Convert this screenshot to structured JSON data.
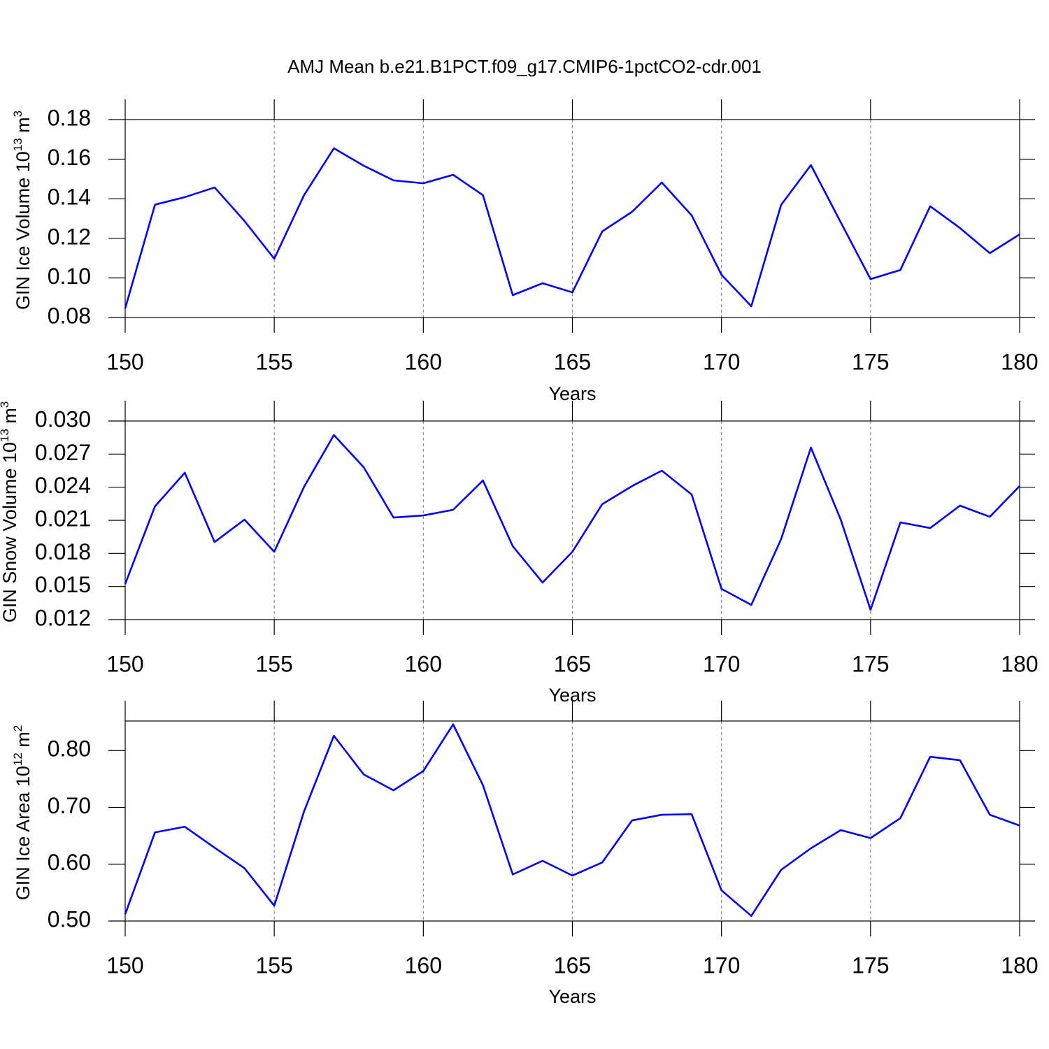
{
  "title": "AMJ Mean b.e21.B1PCT.f09_g17.CMIP6-1pctCO2-cdr.001",
  "chart_data": [
    {
      "type": "line",
      "xlabel": "Years",
      "ylabel": {
        "text": "GIN Ice Volume 10",
        "exp": "13",
        "unit": " m",
        "unit_exp": "3"
      },
      "x": [
        150,
        151,
        152,
        153,
        154,
        155,
        156,
        157,
        158,
        159,
        160,
        161,
        162,
        163,
        164,
        165,
        166,
        167,
        168,
        169,
        170,
        171,
        172,
        173,
        174,
        175,
        176,
        177,
        178,
        179,
        180
      ],
      "series": [
        {
          "name": "GIN Ice Volume",
          "color": "#0000ff",
          "values": [
            0.0846,
            0.137,
            0.1408,
            0.1457,
            0.1288,
            0.1097,
            0.1418,
            0.1655,
            0.1567,
            0.1493,
            0.1478,
            0.1521,
            0.1418,
            0.0913,
            0.0973,
            0.0927,
            0.1235,
            0.1334,
            0.1482,
            0.1316,
            0.1016,
            0.0857,
            0.1369,
            0.157,
            0.1281,
            0.0994,
            0.104,
            0.1362,
            0.1252,
            0.1125,
            0.122
          ]
        }
      ],
      "xlim": [
        150,
        180
      ],
      "xticks": [
        150,
        155,
        160,
        165,
        170,
        175,
        180
      ],
      "ylim": [
        0.08,
        0.18
      ],
      "yticks": [
        {
          "value": 0.08,
          "label": "0.08"
        },
        {
          "value": 0.1,
          "label": "0.10"
        },
        {
          "value": 0.12,
          "label": "0.12"
        },
        {
          "value": 0.14,
          "label": "0.14"
        },
        {
          "value": 0.16,
          "label": "0.16"
        },
        {
          "value": 0.18,
          "label": "0.18"
        }
      ],
      "xgrid": true
    },
    {
      "type": "line",
      "xlabel": "Years",
      "ylabel": {
        "text": "GIN Snow Volume 10",
        "exp": "13",
        "unit": " m",
        "unit_exp": "3"
      },
      "x": [
        150,
        151,
        152,
        153,
        154,
        155,
        156,
        157,
        158,
        159,
        160,
        161,
        162,
        163,
        164,
        165,
        166,
        167,
        168,
        169,
        170,
        171,
        172,
        173,
        174,
        175,
        176,
        177,
        178,
        179,
        180
      ],
      "series": [
        {
          "name": "GIN Snow Volume",
          "color": "#0000ff",
          "values": [
            0.01523,
            0.02227,
            0.02531,
            0.01903,
            0.02106,
            0.01815,
            0.02404,
            0.02873,
            0.02581,
            0.02125,
            0.02144,
            0.02195,
            0.02461,
            0.01865,
            0.01536,
            0.01815,
            0.02246,
            0.0241,
            0.0255,
            0.02334,
            0.01479,
            0.01333,
            0.01929,
            0.02759,
            0.02106,
            0.01289,
            0.02081,
            0.0203,
            0.02233,
            0.02132,
            0.0241
          ]
        }
      ],
      "xlim": [
        150,
        180
      ],
      "xticks": [
        150,
        155,
        160,
        165,
        170,
        175,
        180
      ],
      "ylim": [
        0.012,
        0.03
      ],
      "yticks": [
        {
          "value": 0.012,
          "label": "0.012"
        },
        {
          "value": 0.015,
          "label": "0.015"
        },
        {
          "value": 0.018,
          "label": "0.018"
        },
        {
          "value": 0.021,
          "label": "0.021"
        },
        {
          "value": 0.024,
          "label": "0.024"
        },
        {
          "value": 0.027,
          "label": "0.027"
        },
        {
          "value": 0.03,
          "label": "0.030"
        }
      ],
      "xgrid": true
    },
    {
      "type": "line",
      "xlabel": "Years",
      "ylabel": {
        "text": "GIN Ice Area 10",
        "exp": "12",
        "unit": " m",
        "unit_exp": "2"
      },
      "x": [
        150,
        151,
        152,
        153,
        154,
        155,
        156,
        157,
        158,
        159,
        160,
        161,
        162,
        163,
        164,
        165,
        166,
        167,
        168,
        169,
        170,
        171,
        172,
        173,
        174,
        175,
        176,
        177,
        178,
        179,
        180
      ],
      "series": [
        {
          "name": "GIN Ice Area",
          "color": "#0000ff",
          "values": [
            0.512,
            0.656,
            0.666,
            0.629,
            0.593,
            0.527,
            0.693,
            0.826,
            0.758,
            0.73,
            0.764,
            0.846,
            0.739,
            0.582,
            0.606,
            0.58,
            0.603,
            0.677,
            0.687,
            0.688,
            0.554,
            0.509,
            0.59,
            0.628,
            0.66,
            0.646,
            0.681,
            0.789,
            0.783,
            0.687,
            0.668
          ]
        }
      ],
      "xlim": [
        150,
        180
      ],
      "xticks": [
        150,
        155,
        160,
        165,
        170,
        175,
        180
      ],
      "ylim": [
        0.5,
        0.852
      ],
      "yticks": [
        {
          "value": 0.5,
          "label": "0.50"
        },
        {
          "value": 0.6,
          "label": "0.60"
        },
        {
          "value": 0.7,
          "label": "0.70"
        },
        {
          "value": 0.8,
          "label": "0.80"
        }
      ],
      "xgrid": true
    }
  ]
}
